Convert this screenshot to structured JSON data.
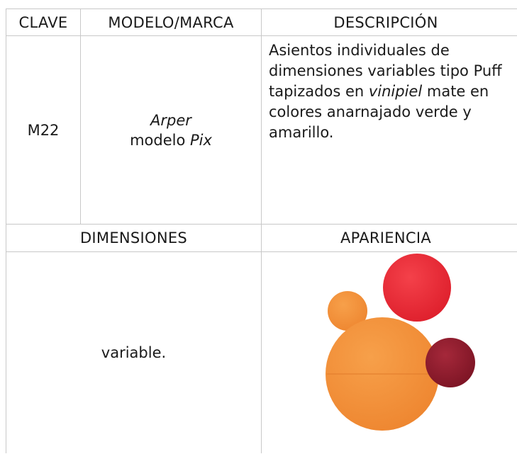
{
  "table": {
    "headers": [
      "CLAVE",
      "MODELO/MARCA",
      "DESCRIPCIÓN"
    ],
    "row": {
      "clave": "M22",
      "modelo": [
        "Arper",
        "modelo ",
        "Pix"
      ],
      "descripcion": [
        "Asientos individuales de dimensiones variables tipo Puff tapizados en ",
        "vinipiel",
        " mate en colores anarnajado verde y amarillo."
      ]
    },
    "headers2": [
      "DIMENSIONES",
      "APARIENCIA"
    ],
    "dimensiones": "variable."
  }
}
